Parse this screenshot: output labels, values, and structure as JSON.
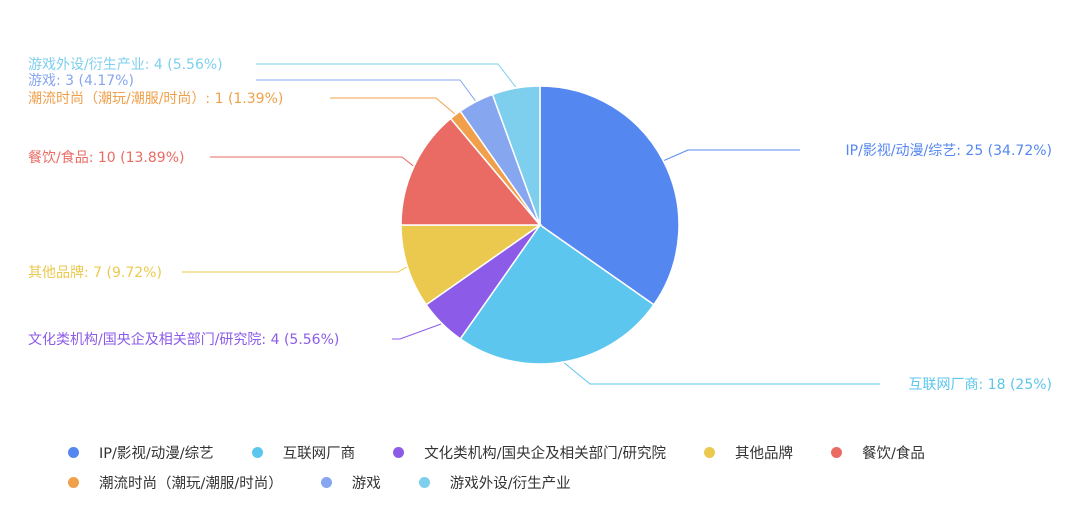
{
  "chart_data": {
    "type": "pie",
    "title": "",
    "slices": [
      {
        "name": "IP/影视/动漫/综艺",
        "value": 25,
        "label": "IP/影视/动漫/综艺: 25 (34.72%)",
        "color": "#5587f0"
      },
      {
        "name": "互联网厂商",
        "value": 18,
        "label": "互联网厂商: 18 (25%)",
        "color": "#5dc6ee"
      },
      {
        "name": "文化类机构/国央企及相关部门/研究院",
        "value": 4,
        "label": "文化类机构/国央企及相关部门/研究院: 4 (5.56%)",
        "color": "#8c5be8"
      },
      {
        "name": "其他品牌",
        "value": 7,
        "label": "其他品牌: 7 (9.72%)",
        "color": "#ebc94e"
      },
      {
        "name": "餐饮/食品",
        "value": 10,
        "label": "餐饮/食品: 10 (13.89%)",
        "color": "#ea6b63"
      },
      {
        "name": "潮流时尚（潮玩/潮服/时尚）",
        "value": 1,
        "label": "潮流时尚（潮玩/潮服/时尚）: 1 (1.39%)",
        "color": "#f0a04b"
      },
      {
        "name": "游戏",
        "value": 3,
        "label": "游戏: 3 (4.17%)",
        "color": "#86a6f0"
      },
      {
        "name": "游戏外设/衍生产业",
        "value": 4,
        "label": "游戏外设/衍生产业: 4 (5.56%)",
        "color": "#7ecfee"
      }
    ],
    "legend_placement": "bottom"
  }
}
